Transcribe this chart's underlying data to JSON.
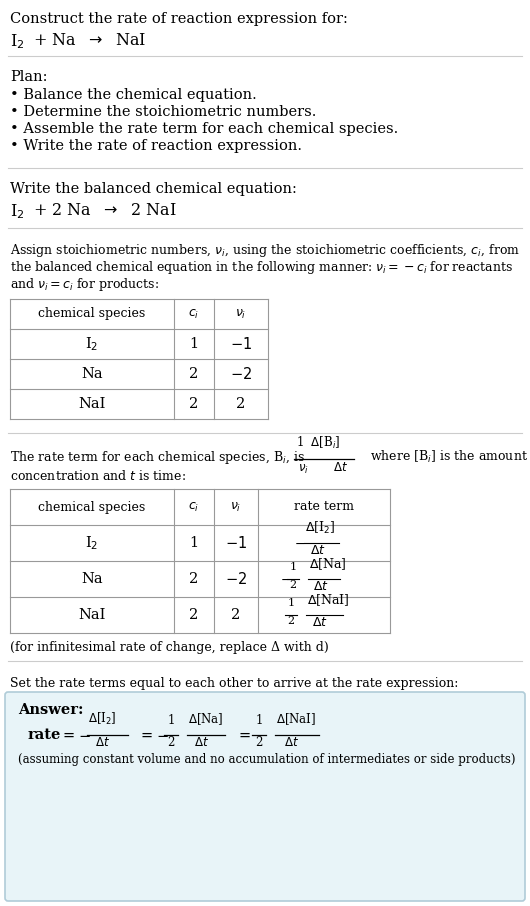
{
  "title_line1": "Construct the rate of reaction expression for:",
  "plan_header": "Plan:",
  "plan_items": [
    "• Balance the chemical equation.",
    "• Determine the stoichiometric numbers.",
    "• Assemble the rate term for each chemical species.",
    "• Write the rate of reaction expression."
  ],
  "balanced_header": "Write the balanced chemical equation:",
  "infinitesimal_note": "(for infinitesimal rate of change, replace Δ with d)",
  "set_equal_text": "Set the rate terms equal to each other to arrive at the rate expression:",
  "assuming_note": "(assuming constant volume and no accumulation of intermediates or side products)",
  "answer_box_color": "#e8f4f8",
  "answer_box_border": "#b0ccd8",
  "bg_color": "#ffffff",
  "separator_color": "#cccccc",
  "table_border_color": "#999999",
  "font_size": 10.5,
  "font_size_small": 9.0,
  "font_size_tiny": 8.0
}
